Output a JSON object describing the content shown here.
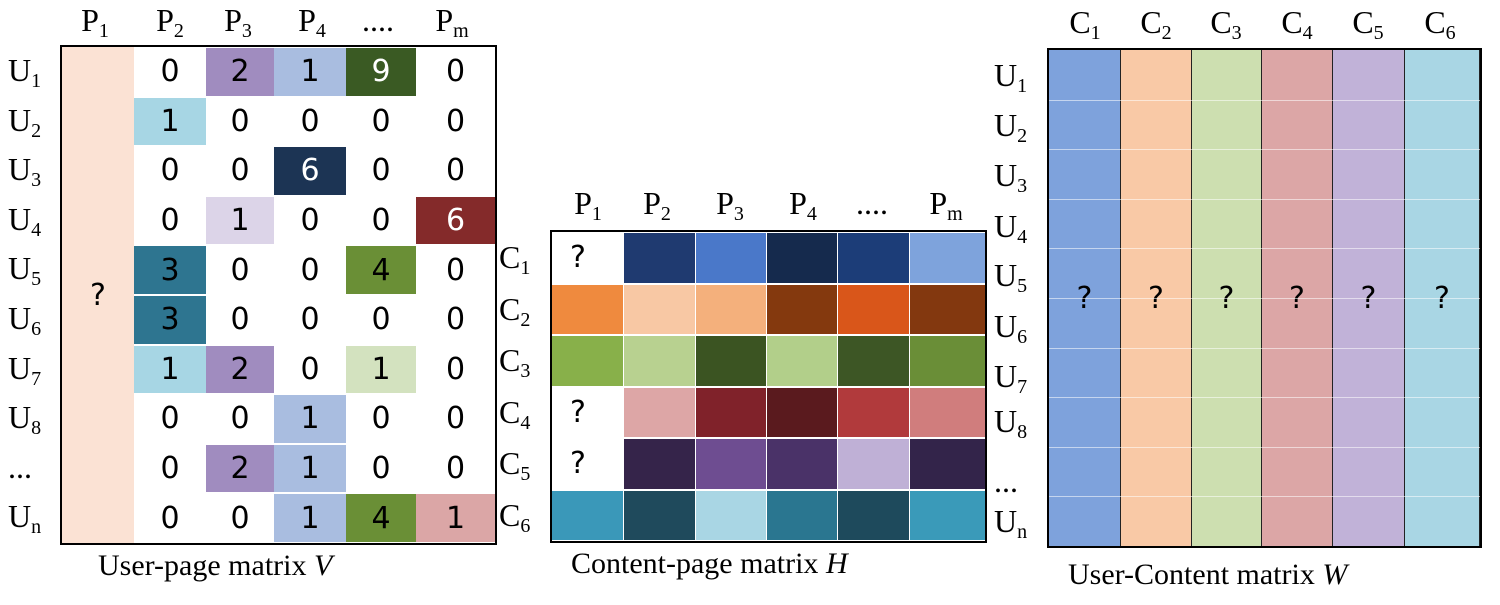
{
  "V": {
    "col_headers": [
      {
        "base": "P",
        "sub": "1"
      },
      {
        "base": "P",
        "sub": "2"
      },
      {
        "base": "P",
        "sub": "3"
      },
      {
        "base": "P",
        "sub": "4"
      },
      {
        "base": "....",
        "sub": ""
      },
      {
        "base": "P",
        "sub": "m"
      }
    ],
    "row_headers": [
      {
        "base": "U",
        "sub": "1"
      },
      {
        "base": "U",
        "sub": "2"
      },
      {
        "base": "U",
        "sub": "3"
      },
      {
        "base": "U",
        "sub": "4"
      },
      {
        "base": "U",
        "sub": "5"
      },
      {
        "base": "U",
        "sub": "6"
      },
      {
        "base": "U",
        "sub": "7"
      },
      {
        "base": "U",
        "sub": "8"
      },
      {
        "base": "...",
        "sub": ""
      },
      {
        "base": "U",
        "sub": "n"
      }
    ],
    "first_column_value": "?",
    "first_column_color": "#fbe2d4",
    "rows": [
      [
        {
          "v": "0",
          "c": ""
        },
        {
          "v": "2",
          "c": "#a08cbf"
        },
        {
          "v": "1",
          "c": "#a9bde0"
        },
        {
          "v": "9",
          "c": "#3a5a23",
          "t": "#ffffff"
        },
        {
          "v": "0",
          "c": ""
        }
      ],
      [
        {
          "v": "1",
          "c": "#a7d6e4"
        },
        {
          "v": "0",
          "c": ""
        },
        {
          "v": "0",
          "c": ""
        },
        {
          "v": "0",
          "c": ""
        },
        {
          "v": "0",
          "c": ""
        }
      ],
      [
        {
          "v": "0",
          "c": ""
        },
        {
          "v": "0",
          "c": ""
        },
        {
          "v": "6",
          "c": "#1c3454",
          "t": "#ffffff"
        },
        {
          "v": "0",
          "c": ""
        },
        {
          "v": "0",
          "c": ""
        }
      ],
      [
        {
          "v": "0",
          "c": ""
        },
        {
          "v": "1",
          "c": "#dcd4e8"
        },
        {
          "v": "0",
          "c": ""
        },
        {
          "v": "0",
          "c": ""
        },
        {
          "v": "6",
          "c": "#842a2a",
          "t": "#ffffff"
        }
      ],
      [
        {
          "v": "3",
          "c": "#2e7590"
        },
        {
          "v": "0",
          "c": ""
        },
        {
          "v": "0",
          "c": ""
        },
        {
          "v": "4",
          "c": "#6a8f36"
        },
        {
          "v": "0",
          "c": ""
        }
      ],
      [
        {
          "v": "3",
          "c": "#2e7590"
        },
        {
          "v": "0",
          "c": ""
        },
        {
          "v": "0",
          "c": ""
        },
        {
          "v": "0",
          "c": ""
        },
        {
          "v": "0",
          "c": ""
        }
      ],
      [
        {
          "v": "1",
          "c": "#a7d6e4"
        },
        {
          "v": "2",
          "c": "#a08cbf"
        },
        {
          "v": "0",
          "c": ""
        },
        {
          "v": "1",
          "c": "#d3e2bf"
        },
        {
          "v": "0",
          "c": ""
        }
      ],
      [
        {
          "v": "0",
          "c": ""
        },
        {
          "v": "0",
          "c": ""
        },
        {
          "v": "1",
          "c": "#a9bde0"
        },
        {
          "v": "0",
          "c": ""
        },
        {
          "v": "0",
          "c": ""
        }
      ],
      [
        {
          "v": "0",
          "c": ""
        },
        {
          "v": "2",
          "c": "#a08cbf"
        },
        {
          "v": "1",
          "c": "#a9bde0"
        },
        {
          "v": "0",
          "c": ""
        },
        {
          "v": "0",
          "c": ""
        }
      ],
      [
        {
          "v": "0",
          "c": ""
        },
        {
          "v": "0",
          "c": ""
        },
        {
          "v": "1",
          "c": "#a9bde0"
        },
        {
          "v": "4",
          "c": "#6a8f36"
        },
        {
          "v": "1",
          "c": "#dba6a6"
        }
      ]
    ],
    "caption_prefix": "User-page matrix ",
    "caption_var": "V"
  },
  "H": {
    "col_headers": [
      {
        "base": "P",
        "sub": "1"
      },
      {
        "base": "P",
        "sub": "2"
      },
      {
        "base": "P",
        "sub": "3"
      },
      {
        "base": "P",
        "sub": "4"
      },
      {
        "base": "....",
        "sub": ""
      },
      {
        "base": "P",
        "sub": "m"
      }
    ],
    "row_headers": [
      {
        "base": "C",
        "sub": "1"
      },
      {
        "base": "C",
        "sub": "2"
      },
      {
        "base": "C",
        "sub": "3"
      },
      {
        "base": "C",
        "sub": "4"
      },
      {
        "base": "C",
        "sub": "5"
      },
      {
        "base": "C",
        "sub": "6"
      }
    ],
    "rows": [
      [
        {
          "v": "?",
          "c": "#ffffff"
        },
        {
          "v": "",
          "c": "#1f3a70"
        },
        {
          "v": "",
          "c": "#4a78c9"
        },
        {
          "v": "",
          "c": "#152a4d"
        },
        {
          "v": "",
          "c": "#1c3d78"
        },
        {
          "v": "",
          "c": "#7ea3dc"
        }
      ],
      [
        {
          "v": "",
          "c": "#ef8a3e"
        },
        {
          "v": "",
          "c": "#f8c8a4"
        },
        {
          "v": "",
          "c": "#f4b07c"
        },
        {
          "v": "",
          "c": "#84390e"
        },
        {
          "v": "",
          "c": "#d9561a"
        },
        {
          "v": "",
          "c": "#83380f"
        }
      ],
      [
        {
          "v": "",
          "c": "#88b04a"
        },
        {
          "v": "",
          "c": "#b8d190"
        },
        {
          "v": "",
          "c": "#3b5422"
        },
        {
          "v": "",
          "c": "#b2cf8a"
        },
        {
          "v": "",
          "c": "#3d5625"
        },
        {
          "v": "",
          "c": "#6a8e37"
        }
      ],
      [
        {
          "v": "?",
          "c": "#ffffff"
        },
        {
          "v": "",
          "c": "#dda6a6"
        },
        {
          "v": "",
          "c": "#80222a"
        },
        {
          "v": "",
          "c": "#5a1a1e"
        },
        {
          "v": "",
          "c": "#b13a3c"
        },
        {
          "v": "",
          "c": "#d07d7d"
        }
      ],
      [
        {
          "v": "?",
          "c": "#ffffff"
        },
        {
          "v": "",
          "c": "#35244a"
        },
        {
          "v": "",
          "c": "#6e4d91"
        },
        {
          "v": "",
          "c": "#4a3268"
        },
        {
          "v": "",
          "c": "#bfb0d6"
        },
        {
          "v": "",
          "c": "#33244a"
        }
      ],
      [
        {
          "v": "",
          "c": "#3a98b9"
        },
        {
          "v": "",
          "c": "#1f4a5c"
        },
        {
          "v": "",
          "c": "#a9d6e4"
        },
        {
          "v": "",
          "c": "#2a7690"
        },
        {
          "v": "",
          "c": "#1e4a5c"
        },
        {
          "v": "",
          "c": "#3a9ab9"
        }
      ]
    ],
    "caption_prefix": "Content-page matrix ",
    "caption_var": "H"
  },
  "W": {
    "col_headers": [
      {
        "base": "C",
        "sub": "1"
      },
      {
        "base": "C",
        "sub": "2"
      },
      {
        "base": "C",
        "sub": "3"
      },
      {
        "base": "C",
        "sub": "4"
      },
      {
        "base": "C",
        "sub": "5"
      },
      {
        "base": "C",
        "sub": "6"
      }
    ],
    "row_headers": [
      {
        "base": "U",
        "sub": "1"
      },
      {
        "base": "U",
        "sub": "2"
      },
      {
        "base": "U",
        "sub": "3"
      },
      {
        "base": "U",
        "sub": "4"
      },
      {
        "base": "U",
        "sub": "5"
      },
      {
        "base": "U",
        "sub": "6"
      },
      {
        "base": "U",
        "sub": "7"
      },
      {
        "base": "U",
        "sub": "8"
      },
      {
        "base": "...",
        "sub": ""
      },
      {
        "base": "U",
        "sub": "n"
      }
    ],
    "columns": [
      {
        "v": "?",
        "c": "#7ea2dc"
      },
      {
        "v": "?",
        "c": "#f9c9a6"
      },
      {
        "v": "?",
        "c": "#cddfb0"
      },
      {
        "v": "?",
        "c": "#dca6a6"
      },
      {
        "v": "?",
        "c": "#c1b2d8"
      },
      {
        "v": "?",
        "c": "#a9d6e4"
      }
    ],
    "caption_prefix": "User-Content matrix ",
    "caption_var": "W"
  }
}
